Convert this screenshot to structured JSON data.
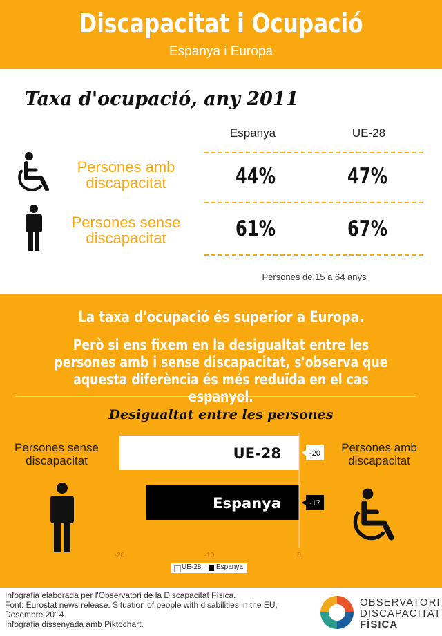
{
  "header": {
    "title": "Discapacitat i Ocupació",
    "subtitle": "Espanya i Europa"
  },
  "employment": {
    "title": "Taxa d'ocupació, any 2011",
    "columns": [
      "Espanya",
      "UE-28"
    ],
    "rows": [
      {
        "label_line1": "Persones amb",
        "label_line2": "discapacitat",
        "values": [
          "44%",
          "47%"
        ],
        "icon": "wheelchair-icon"
      },
      {
        "label_line1": "Persones sense",
        "label_line2": "discapacitat",
        "values": [
          "61%",
          "67%"
        ],
        "icon": "person-icon"
      }
    ],
    "note": "Persones de 15 a 64 anys"
  },
  "message": {
    "line1": "La taxa d'ocupació és superior a Europa.",
    "line2": "Però si ens fixem en la desigualtat entre les persones amb i sense discapacitat, s'observa que aquesta diferència és més reduïda en el cas espanyol."
  },
  "chart_data": {
    "type": "bar",
    "orientation": "horizontal",
    "title": "Desigualtat entre les persones",
    "categories": [
      "UE-28",
      "Espanya"
    ],
    "values": [
      -20,
      -17
    ],
    "value_labels": [
      "-20",
      "-17"
    ],
    "colors": [
      "#ffffff",
      "#000000"
    ],
    "xlim": [
      -20,
      0
    ],
    "ticks": [
      -20,
      -10,
      0
    ],
    "tick_labels": [
      "-20",
      "-10",
      "0"
    ],
    "legend": [
      "UE-28",
      "Espanya"
    ],
    "legend_position": "bottom",
    "left_label_line1": "Persones sense",
    "left_label_line2": "discapacitat",
    "right_label_line1": "Persones amb",
    "right_label_line2": "discapacitat"
  },
  "footer": {
    "line1": "Infografia elaborada per l'Observatori de la Discapacitat Física.",
    "line2": "Font: Eurostat news release. Situation of people with disabilities in the EU,",
    "line3": "Desembre 2014.",
    "line4": "Infografia dissenyada amb Piktochart.",
    "logo_line1": "OBSERVATORI",
    "logo_line2": "DISCAPACITAT",
    "logo_line3": "FÍSICA"
  },
  "colors": {
    "accent": "#f9a80f",
    "dark": "#111111"
  }
}
